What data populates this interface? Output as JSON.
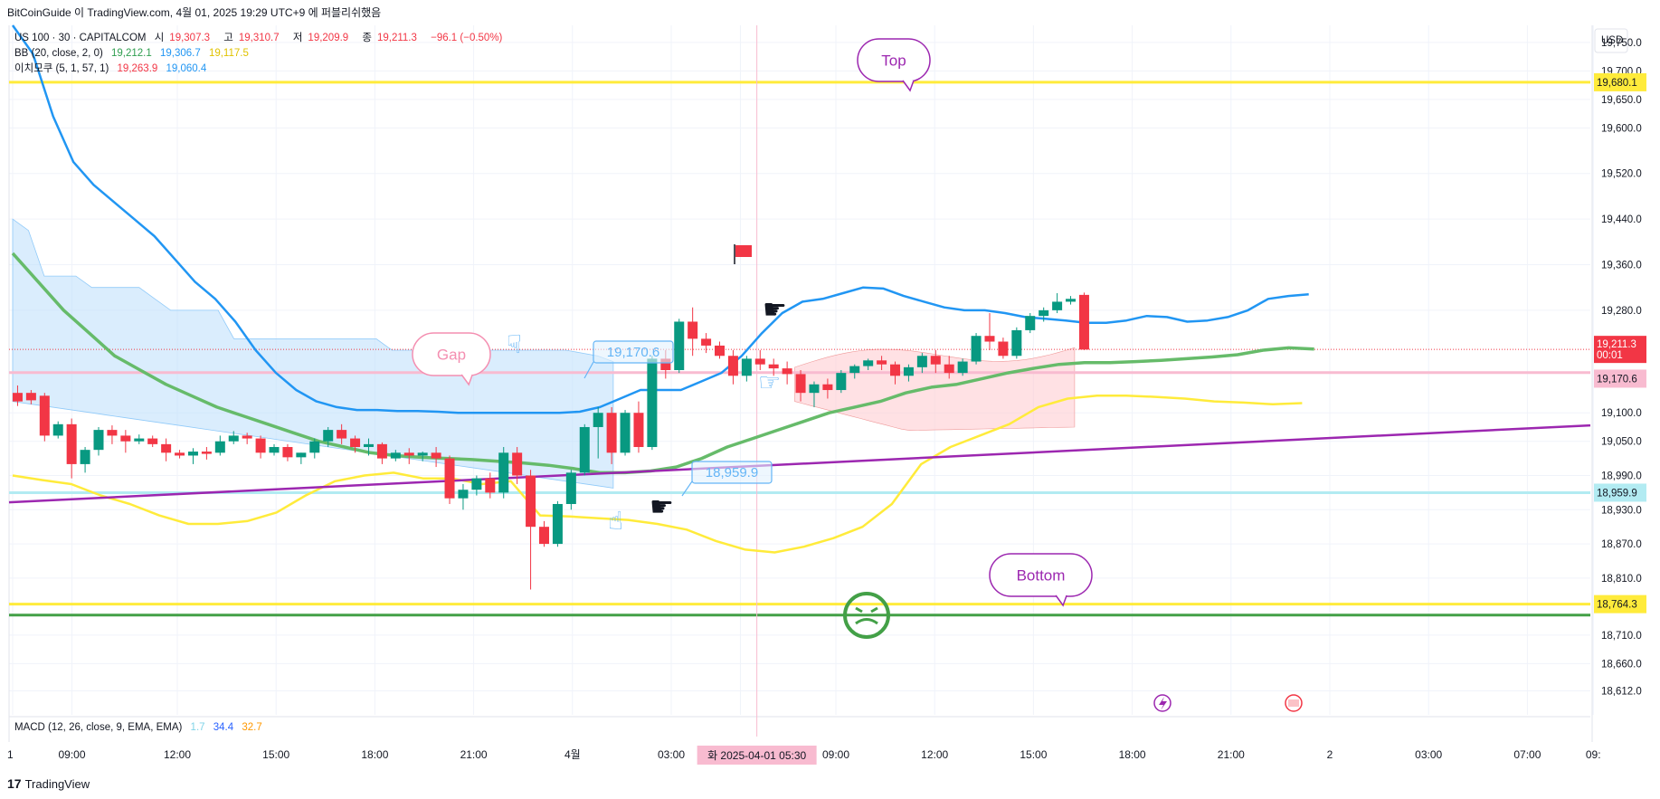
{
  "header": {
    "text": "BitCoinGuide 이 TradingView.com, 4월 01, 2025 19:29 UTC+9 에 퍼블리쉬했음"
  },
  "legend": {
    "symbol": "US 100 · 30 · CAPITALCOM",
    "open_label": "시",
    "open": "19,307.3",
    "high_label": "고",
    "high": "19,310.7",
    "low_label": "저",
    "low": "19,209.9",
    "close_label": "종",
    "close": "19,211.3",
    "change": "−96.1 (−0.50%)",
    "bb_label": "BB (20, close, 2, 0)",
    "bb_basis": "19,212.1",
    "bb_upper": "19,306.7",
    "bb_lower": "19,117.5",
    "ichimoku_label": "이치모쿠 (5, 1, 57, 1)",
    "ichimoku_a": "19,263.9",
    "ichimoku_b": "19,060.4"
  },
  "macd": {
    "label": "MACD (12, 26, close, 9, EMA, EMA)",
    "v1": "1.7",
    "v2": "34.4",
    "v3": "32.7"
  },
  "footer": {
    "brand": "TradingView",
    "logo": "17"
  },
  "colors": {
    "up": "#089981",
    "down": "#f23645",
    "bb_upper": "#2196f3",
    "bb_basis": "#66bb6a",
    "bb_lower": "#ffeb3b",
    "trend": "#9c27b0",
    "cloud_blue": "#bbdefb",
    "cloud_red": "#ffcdd2",
    "yellow_line": "#ffeb3b",
    "green_line": "#43a047"
  },
  "chart_data": {
    "type": "candlestick",
    "currency": "USD",
    "y_min": 18570,
    "y_max": 19780,
    "y_ticks": [
      "18,612.0",
      "18,660.0",
      "18,710.0",
      "18,810.0",
      "18,870.0",
      "18,930.0",
      "18,990.0",
      "19,050.0",
      "19,100.0",
      "19,280.0",
      "19,360.0",
      "19,440.0",
      "19,520.0",
      "19,600.0",
      "19,650.0",
      "19,700.0",
      "19,750.0"
    ],
    "y_tick_values": [
      18612,
      18660,
      18710,
      18810,
      18870,
      18930,
      18990,
      19050,
      19100,
      19280,
      19360,
      19440,
      19520,
      19600,
      19650,
      19700,
      19750
    ],
    "x_labels": [
      "1",
      "09:00",
      "12:00",
      "15:00",
      "18:00",
      "21:00",
      "4월",
      "03:00",
      "05:30",
      "09:00",
      "12:00",
      "15:00",
      "18:00",
      "21:00",
      "2",
      "03:00",
      "07:00",
      "09:"
    ],
    "x_label_index": [
      0,
      3.6,
      10,
      16,
      22,
      28,
      34,
      40,
      44.2,
      50,
      56,
      62,
      68,
      74,
      80,
      86,
      92,
      96
    ],
    "crosshair_index": 45.2,
    "crosshair_date": "화 2025-04-01  05:30",
    "candles": [
      {
        "o": 19135,
        "h": 19148,
        "c": 19120,
        "l": 19112
      },
      {
        "o": 19135,
        "h": 19140,
        "c": 19122,
        "l": 19115
      },
      {
        "o": 19130,
        "h": 19135,
        "c": 19060,
        "l": 19050
      },
      {
        "o": 19060,
        "h": 19085,
        "c": 19080,
        "l": 19055
      },
      {
        "o": 19080,
        "h": 19090,
        "c": 19010,
        "l": 18985
      },
      {
        "o": 19010,
        "h": 19040,
        "c": 19035,
        "l": 18995
      },
      {
        "o": 19035,
        "h": 19075,
        "c": 19070,
        "l": 19025
      },
      {
        "o": 19070,
        "h": 19078,
        "c": 19060,
        "l": 19045
      },
      {
        "o": 19060,
        "h": 19070,
        "c": 19050,
        "l": 19030
      },
      {
        "o": 19050,
        "h": 19062,
        "c": 19055,
        "l": 19045
      },
      {
        "o": 19055,
        "h": 19060,
        "c": 19045,
        "l": 19040
      },
      {
        "o": 19045,
        "h": 19055,
        "c": 19030,
        "l": 19015
      },
      {
        "o": 19030,
        "h": 19035,
        "c": 19025,
        "l": 19020
      },
      {
        "o": 19025,
        "h": 19038,
        "c": 19032,
        "l": 19010
      },
      {
        "o": 19032,
        "h": 19040,
        "c": 19028,
        "l": 19018
      },
      {
        "o": 19030,
        "h": 19060,
        "c": 19050,
        "l": 19025
      },
      {
        "o": 19050,
        "h": 19068,
        "c": 19060,
        "l": 19045
      },
      {
        "o": 19060,
        "h": 19065,
        "c": 19055,
        "l": 19045
      },
      {
        "o": 19055,
        "h": 19060,
        "c": 19030,
        "l": 19020
      },
      {
        "o": 19030,
        "h": 19045,
        "c": 19040,
        "l": 19025
      },
      {
        "o": 19040,
        "h": 19045,
        "c": 19022,
        "l": 19015
      },
      {
        "o": 19022,
        "h": 19030,
        "c": 19030,
        "l": 19010
      },
      {
        "o": 19030,
        "h": 19055,
        "c": 19050,
        "l": 19020
      },
      {
        "o": 19050,
        "h": 19075,
        "c": 19070,
        "l": 19040
      },
      {
        "o": 19070,
        "h": 19080,
        "c": 19055,
        "l": 19045
      },
      {
        "o": 19055,
        "h": 19060,
        "c": 19040,
        "l": 19030
      },
      {
        "o": 19040,
        "h": 19055,
        "c": 19045,
        "l": 19025
      },
      {
        "o": 19045,
        "h": 19048,
        "c": 19020,
        "l": 19010
      },
      {
        "o": 19020,
        "h": 19035,
        "c": 19030,
        "l": 19015
      },
      {
        "o": 19030,
        "h": 19038,
        "c": 19025,
        "l": 19010
      },
      {
        "o": 19025,
        "h": 19032,
        "c": 19030,
        "l": 19015
      },
      {
        "o": 19030,
        "h": 19040,
        "c": 19020,
        "l": 19005
      },
      {
        "o": 19020,
        "h": 19025,
        "c": 18950,
        "l": 18940
      },
      {
        "o": 18950,
        "h": 18975,
        "c": 18965,
        "l": 18930
      },
      {
        "o": 18965,
        "h": 18990,
        "c": 18985,
        "l": 18955
      },
      {
        "o": 18985,
        "h": 18995,
        "c": 18960,
        "l": 18950
      },
      {
        "o": 18960,
        "h": 19040,
        "c": 19030,
        "l": 18950
      },
      {
        "o": 19030,
        "h": 19040,
        "c": 18990,
        "l": 18975
      },
      {
        "o": 18990,
        "h": 19000,
        "c": 18900,
        "l": 18790
      },
      {
        "o": 18900,
        "h": 18910,
        "c": 18870,
        "l": 18865
      },
      {
        "o": 18870,
        "h": 18945,
        "c": 18940,
        "l": 18865
      },
      {
        "o": 18940,
        "h": 19000,
        "c": 18995,
        "l": 18930
      },
      {
        "o": 18995,
        "h": 19080,
        "c": 19075,
        "l": 18990
      },
      {
        "o": 19075,
        "h": 19110,
        "c": 19100,
        "l": 19020
      },
      {
        "o": 19100,
        "h": 19110,
        "c": 19030,
        "l": 19010
      },
      {
        "o": 19030,
        "h": 19105,
        "c": 19100,
        "l": 19025
      },
      {
        "o": 19100,
        "h": 19120,
        "c": 19040,
        "l": 19030
      },
      {
        "o": 19040,
        "h": 19200,
        "c": 19195,
        "l": 19035
      },
      {
        "o": 19195,
        "h": 19210,
        "c": 19175,
        "l": 19160
      },
      {
        "o": 19175,
        "h": 19265,
        "c": 19260,
        "l": 19170
      },
      {
        "o": 19260,
        "h": 19285,
        "c": 19230,
        "l": 19200
      },
      {
        "o": 19230,
        "h": 19240,
        "c": 19218,
        "l": 19205
      },
      {
        "o": 19218,
        "h": 19225,
        "c": 19200,
        "l": 19195
      },
      {
        "o": 19200,
        "h": 19210,
        "c": 19165,
        "l": 19150
      },
      {
        "o": 19165,
        "h": 19200,
        "c": 19195,
        "l": 19155
      },
      {
        "o": 19195,
        "h": 19210,
        "c": 19185,
        "l": 19175
      },
      {
        "o": 19185,
        "h": 19195,
        "c": 19178,
        "l": 19165
      },
      {
        "o": 19178,
        "h": 19190,
        "c": 19168,
        "l": 19150
      },
      {
        "o": 19168,
        "h": 19175,
        "c": 19135,
        "l": 19120
      },
      {
        "o": 19135,
        "h": 19155,
        "c": 19150,
        "l": 19110
      },
      {
        "o": 19150,
        "h": 19160,
        "c": 19140,
        "l": 19125
      },
      {
        "o": 19140,
        "h": 19175,
        "c": 19170,
        "l": 19135
      },
      {
        "o": 19170,
        "h": 19185,
        "c": 19182,
        "l": 19160
      },
      {
        "o": 19182,
        "h": 19195,
        "c": 19192,
        "l": 19175
      },
      {
        "o": 19192,
        "h": 19200,
        "c": 19185,
        "l": 19175
      },
      {
        "o": 19185,
        "h": 19190,
        "c": 19165,
        "l": 19150
      },
      {
        "o": 19165,
        "h": 19185,
        "c": 19180,
        "l": 19155
      },
      {
        "o": 19180,
        "h": 19205,
        "c": 19200,
        "l": 19170
      },
      {
        "o": 19200,
        "h": 19210,
        "c": 19185,
        "l": 19170
      },
      {
        "o": 19185,
        "h": 19200,
        "c": 19170,
        "l": 19160
      },
      {
        "o": 19170,
        "h": 19195,
        "c": 19190,
        "l": 19165
      },
      {
        "o": 19190,
        "h": 19240,
        "c": 19235,
        "l": 19185
      },
      {
        "o": 19235,
        "h": 19275,
        "c": 19225,
        "l": 19210
      },
      {
        "o": 19225,
        "h": 19232,
        "c": 19200,
        "l": 19195
      },
      {
        "o": 19200,
        "h": 19250,
        "c": 19245,
        "l": 19195
      },
      {
        "o": 19245,
        "h": 19275,
        "c": 19270,
        "l": 19240
      },
      {
        "o": 19270,
        "h": 19285,
        "c": 19280,
        "l": 19260
      },
      {
        "o": 19280,
        "h": 19310,
        "c": 19295,
        "l": 19275
      },
      {
        "o": 19295,
        "h": 19305,
        "c": 19300,
        "l": 19290
      },
      {
        "o": 19307,
        "h": 19311,
        "c": 19211,
        "l": 19210
      }
    ],
    "bb_upper": [
      19780,
      19730,
      19620,
      19540,
      19500,
      19470,
      19440,
      19410,
      19370,
      19330,
      19300,
      19260,
      19210,
      19170,
      19140,
      19120,
      19110,
      19105,
      19105,
      19103,
      19103,
      19102,
      19100,
      19100,
      19100,
      19100,
      19100,
      19100,
      19102,
      19110,
      19125,
      19140,
      19140,
      19140,
      19155,
      19170,
      19200,
      19240,
      19275,
      19295,
      19300,
      19310,
      19320,
      19318,
      19305,
      19295,
      19285,
      19280,
      19280,
      19275,
      19268,
      19265,
      19262,
      19258,
      19258,
      19262,
      19270,
      19268,
      19260,
      19262,
      19268,
      19280,
      19300,
      19305,
      19308
    ],
    "bb_basis": [
      19380,
      19330,
      19280,
      19240,
      19200,
      19175,
      19150,
      19130,
      19110,
      19095,
      19080,
      19065,
      19050,
      19040,
      19030,
      19025,
      19022,
      19020,
      19018,
      19015,
      19012,
      19008,
      19002,
      18995,
      18995,
      18998,
      19005,
      19020,
      19040,
      19055,
      19070,
      19085,
      19100,
      19110,
      19120,
      19135,
      19145,
      19150,
      19160,
      19170,
      19178,
      19185,
      19188,
      19188,
      19190,
      19192,
      19195,
      19198,
      19202,
      19210,
      19214,
      19212
    ],
    "bb_lower": [
      18990,
      18982,
      18975,
      18955,
      18940,
      18920,
      18905,
      18905,
      18910,
      18925,
      18955,
      18980,
      18990,
      18995,
      18985,
      18985,
      18975,
      18980,
      18920,
      18918,
      18915,
      18912,
      18905,
      18895,
      18875,
      18860,
      18855,
      18865,
      18880,
      18900,
      18940,
      19010,
      19040,
      19060,
      19080,
      19110,
      19125,
      19130,
      19130,
      19128,
      19125,
      19120,
      19118,
      19115,
      19117
    ],
    "cloud_blue_top": [
      19440,
      19420,
      19340,
      19340,
      19340,
      19320,
      19320,
      19320,
      19320,
      19300,
      19280,
      19280,
      19280,
      19280,
      19230,
      19230,
      19230,
      19230,
      19230,
      19230,
      19230,
      19230,
      19230,
      19230,
      19210,
      19210,
      19210,
      19210,
      19210,
      19210,
      19210,
      19210,
      19210,
      19210,
      19210,
      19210,
      19205,
      19200,
      19190
    ],
    "annotations": {
      "top": "Top",
      "bottom": "Bottom",
      "gap": "Gap",
      "label_19170": "19,170.6",
      "label_18959": "18,959.9"
    },
    "price_tags": {
      "p19680": "19,680.1",
      "p19211": "19,211.3",
      "p19211_time": "00:01",
      "p19170": "19,170.6",
      "p18959": "18,959.9",
      "p18764": "18,764.3"
    },
    "hlines": {
      "top_yellow": 19680.1,
      "bottom_yellow": 18764.3,
      "green": 18745,
      "cyan": 18959.9,
      "pink": 19170.6
    },
    "trendline": {
      "from": 18943,
      "to": 19078
    }
  }
}
